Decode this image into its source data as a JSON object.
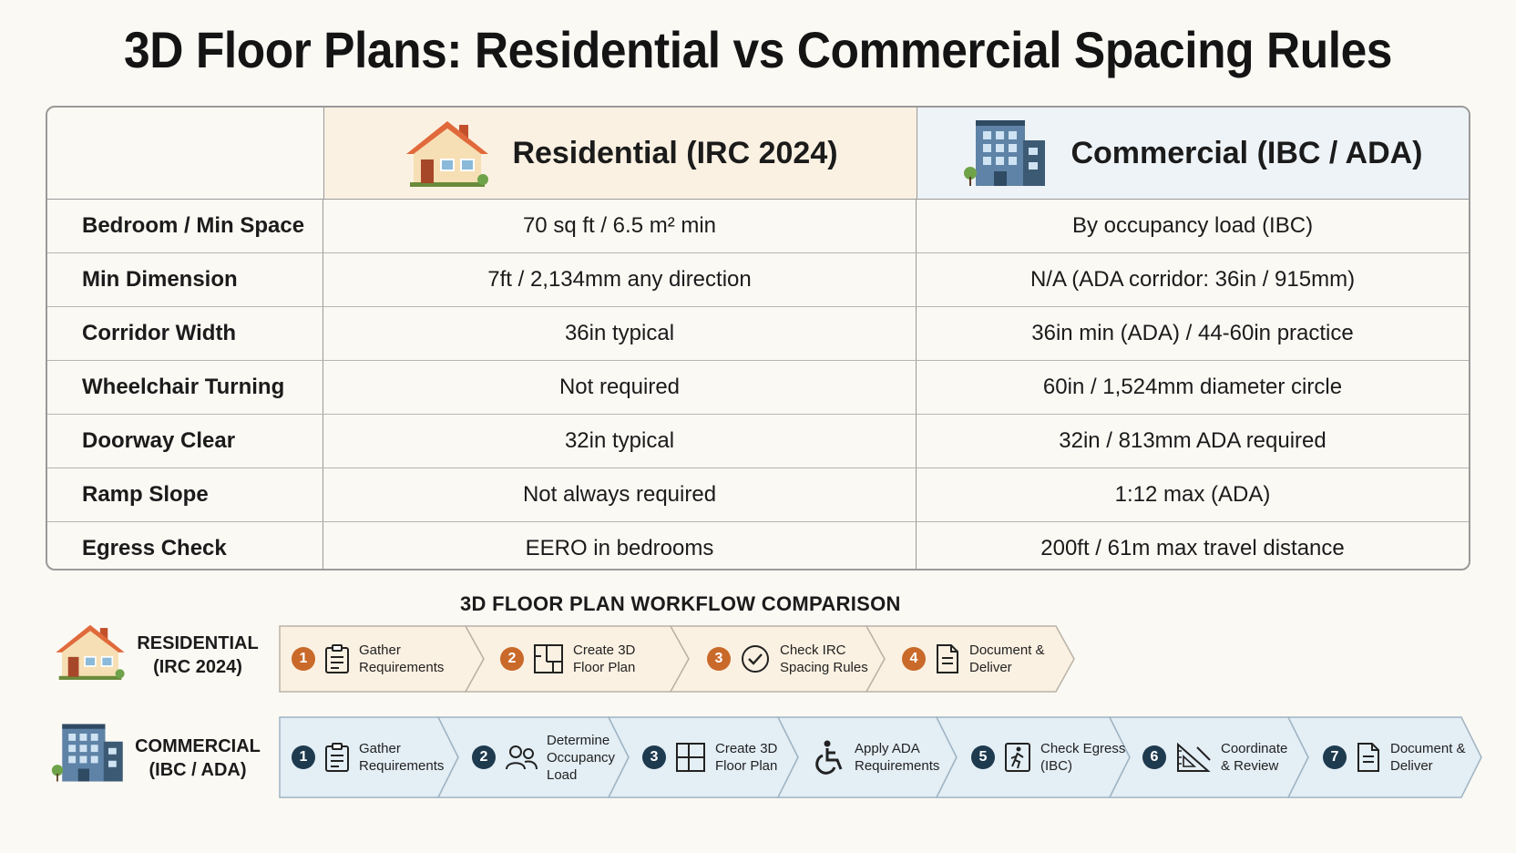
{
  "title": "3D Floor Plans: Residential vs Commercial Spacing Rules",
  "table": {
    "columns": {
      "residential": {
        "label": "Residential (IRC 2024)",
        "icon": "house-icon"
      },
      "commercial": {
        "label": "Commercial (IBC / ADA)",
        "icon": "office-building-icon"
      }
    },
    "rows": [
      {
        "label": "Bedroom / Min Space",
        "residential": "70 sq ft / 6.5 m² min",
        "commercial": "By occupancy load (IBC)"
      },
      {
        "label": "Min Dimension",
        "residential": "7ft / 2,134mm any direction",
        "commercial": "N/A (ADA corridor: 36in / 915mm)"
      },
      {
        "label": "Corridor Width",
        "residential": "36in typical",
        "commercial": "36in min (ADA) / 44-60in practice"
      },
      {
        "label": "Wheelchair Turning",
        "residential": "Not required",
        "commercial": "60in / 1,524mm diameter circle"
      },
      {
        "label": "Doorway Clear",
        "residential": "32in typical",
        "commercial": "32in / 813mm ADA required"
      },
      {
        "label": "Ramp Slope",
        "residential": "Not always required",
        "commercial": "1:12 max (ADA)"
      },
      {
        "label": "Egress Check",
        "residential": "EERO in bedrooms",
        "commercial": "200ft / 61m max travel distance"
      }
    ]
  },
  "workflow": {
    "title": "3D FLOOR PLAN WORKFLOW COMPARISON",
    "residential": {
      "label_line1": "RESIDENTIAL",
      "label_line2": "(IRC 2024)",
      "color": "#fbf1e2",
      "accent": "#c9692a",
      "steps": [
        {
          "num": "1",
          "line1": "Gather",
          "line2": "Requirements",
          "icon": "clipboard-icon"
        },
        {
          "num": "2",
          "line1": "Create 3D",
          "line2": "Floor Plan",
          "icon": "floor-plan-icon"
        },
        {
          "num": "3",
          "line1": "Check IRC",
          "line2": "Spacing Rules",
          "icon": "checkmark-circle-icon"
        },
        {
          "num": "4",
          "line1": "Document &",
          "line2": "Deliver",
          "icon": "document-icon"
        }
      ]
    },
    "commercial": {
      "label_line1": "COMMERCIAL",
      "label_line2": "(IBC / ADA)",
      "color": "#e3eef5",
      "accent": "#1e3a4f",
      "steps": [
        {
          "num": "1",
          "line1": "Gather",
          "line2": "Requirements",
          "line3": "",
          "icon": "clipboard-icon"
        },
        {
          "num": "2",
          "line1": "Determine",
          "line2": "Occupancy",
          "line3": "Load",
          "icon": "people-icon"
        },
        {
          "num": "3",
          "line1": "Create 3D",
          "line2": "Floor Plan",
          "line3": "",
          "icon": "floor-plan-icon"
        },
        {
          "num": "",
          "line1": "Apply ADA",
          "line2": "Requirements",
          "line3": "",
          "icon": "wheelchair-icon"
        },
        {
          "num": "5",
          "line1": "Check Egress",
          "line2": "(IBC)",
          "line3": "",
          "icon": "exit-sign-icon"
        },
        {
          "num": "6",
          "line1": "Coordinate",
          "line2": "& Review",
          "line3": "",
          "icon": "set-square-icon"
        },
        {
          "num": "7",
          "line1": "Document &",
          "line2": "Deliver",
          "line3": "",
          "icon": "document-icon"
        }
      ]
    }
  }
}
